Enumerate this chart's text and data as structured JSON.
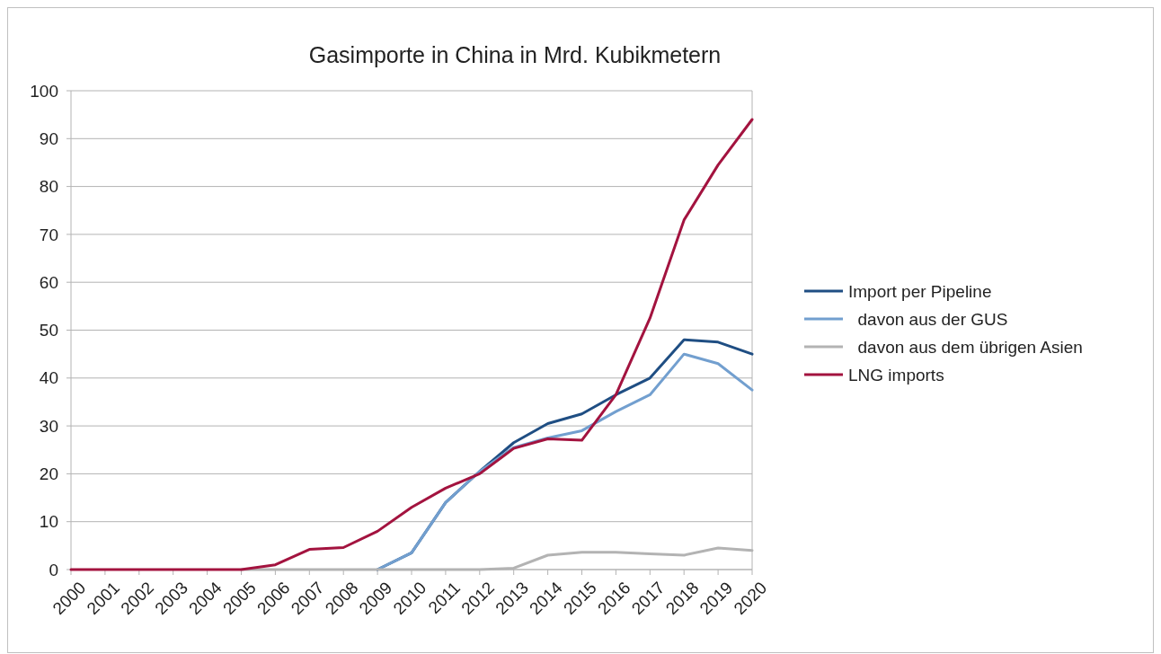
{
  "chart_data": {
    "type": "line",
    "title": "Gasimporte in China in Mrd. Kubikmetern",
    "categories": [
      "2000",
      "2001",
      "2002",
      "2003",
      "2004",
      "2005",
      "2006",
      "2007",
      "2008",
      "2009",
      "2010",
      "2011",
      "2012",
      "2013",
      "2014",
      "2015",
      "2016",
      "2017",
      "2018",
      "2019",
      "2020"
    ],
    "series": [
      {
        "name": "Import per Pipeline",
        "color": "#1f4e83",
        "values": [
          null,
          null,
          null,
          null,
          null,
          null,
          null,
          null,
          null,
          0,
          3.5,
          14,
          20.5,
          26.5,
          30.5,
          32.5,
          36.5,
          40,
          48,
          47.5,
          45
        ]
      },
      {
        "name": "  davon aus der GUS",
        "color": "#729fcf",
        "values": [
          null,
          null,
          null,
          null,
          null,
          null,
          null,
          null,
          null,
          0,
          3.5,
          14,
          20.5,
          25.5,
          27.5,
          29,
          33,
          36.5,
          45,
          43,
          37.5
        ]
      },
      {
        "name": "  davon aus dem übrigen Asien",
        "color": "#b3b3b3",
        "values": [
          null,
          null,
          null,
          null,
          null,
          0,
          0,
          0,
          0,
          0,
          0,
          0,
          0,
          0.3,
          3,
          3.6,
          3.6,
          3.3,
          3,
          4.5,
          4
        ]
      },
      {
        "name": "LNG imports",
        "color": "#a3133f",
        "values": [
          0,
          0,
          0,
          0,
          0,
          0,
          1,
          4.2,
          4.6,
          8,
          13,
          17,
          20,
          25.3,
          27.3,
          27,
          36.5,
          52.5,
          73,
          84.5,
          94
        ]
      }
    ],
    "ylim": [
      0,
      100
    ],
    "yticks": [
      0,
      10,
      20,
      30,
      40,
      50,
      60,
      70,
      80,
      90,
      100
    ],
    "grid": "y",
    "legend": "right",
    "marker": "none",
    "line_style": "solid"
  }
}
